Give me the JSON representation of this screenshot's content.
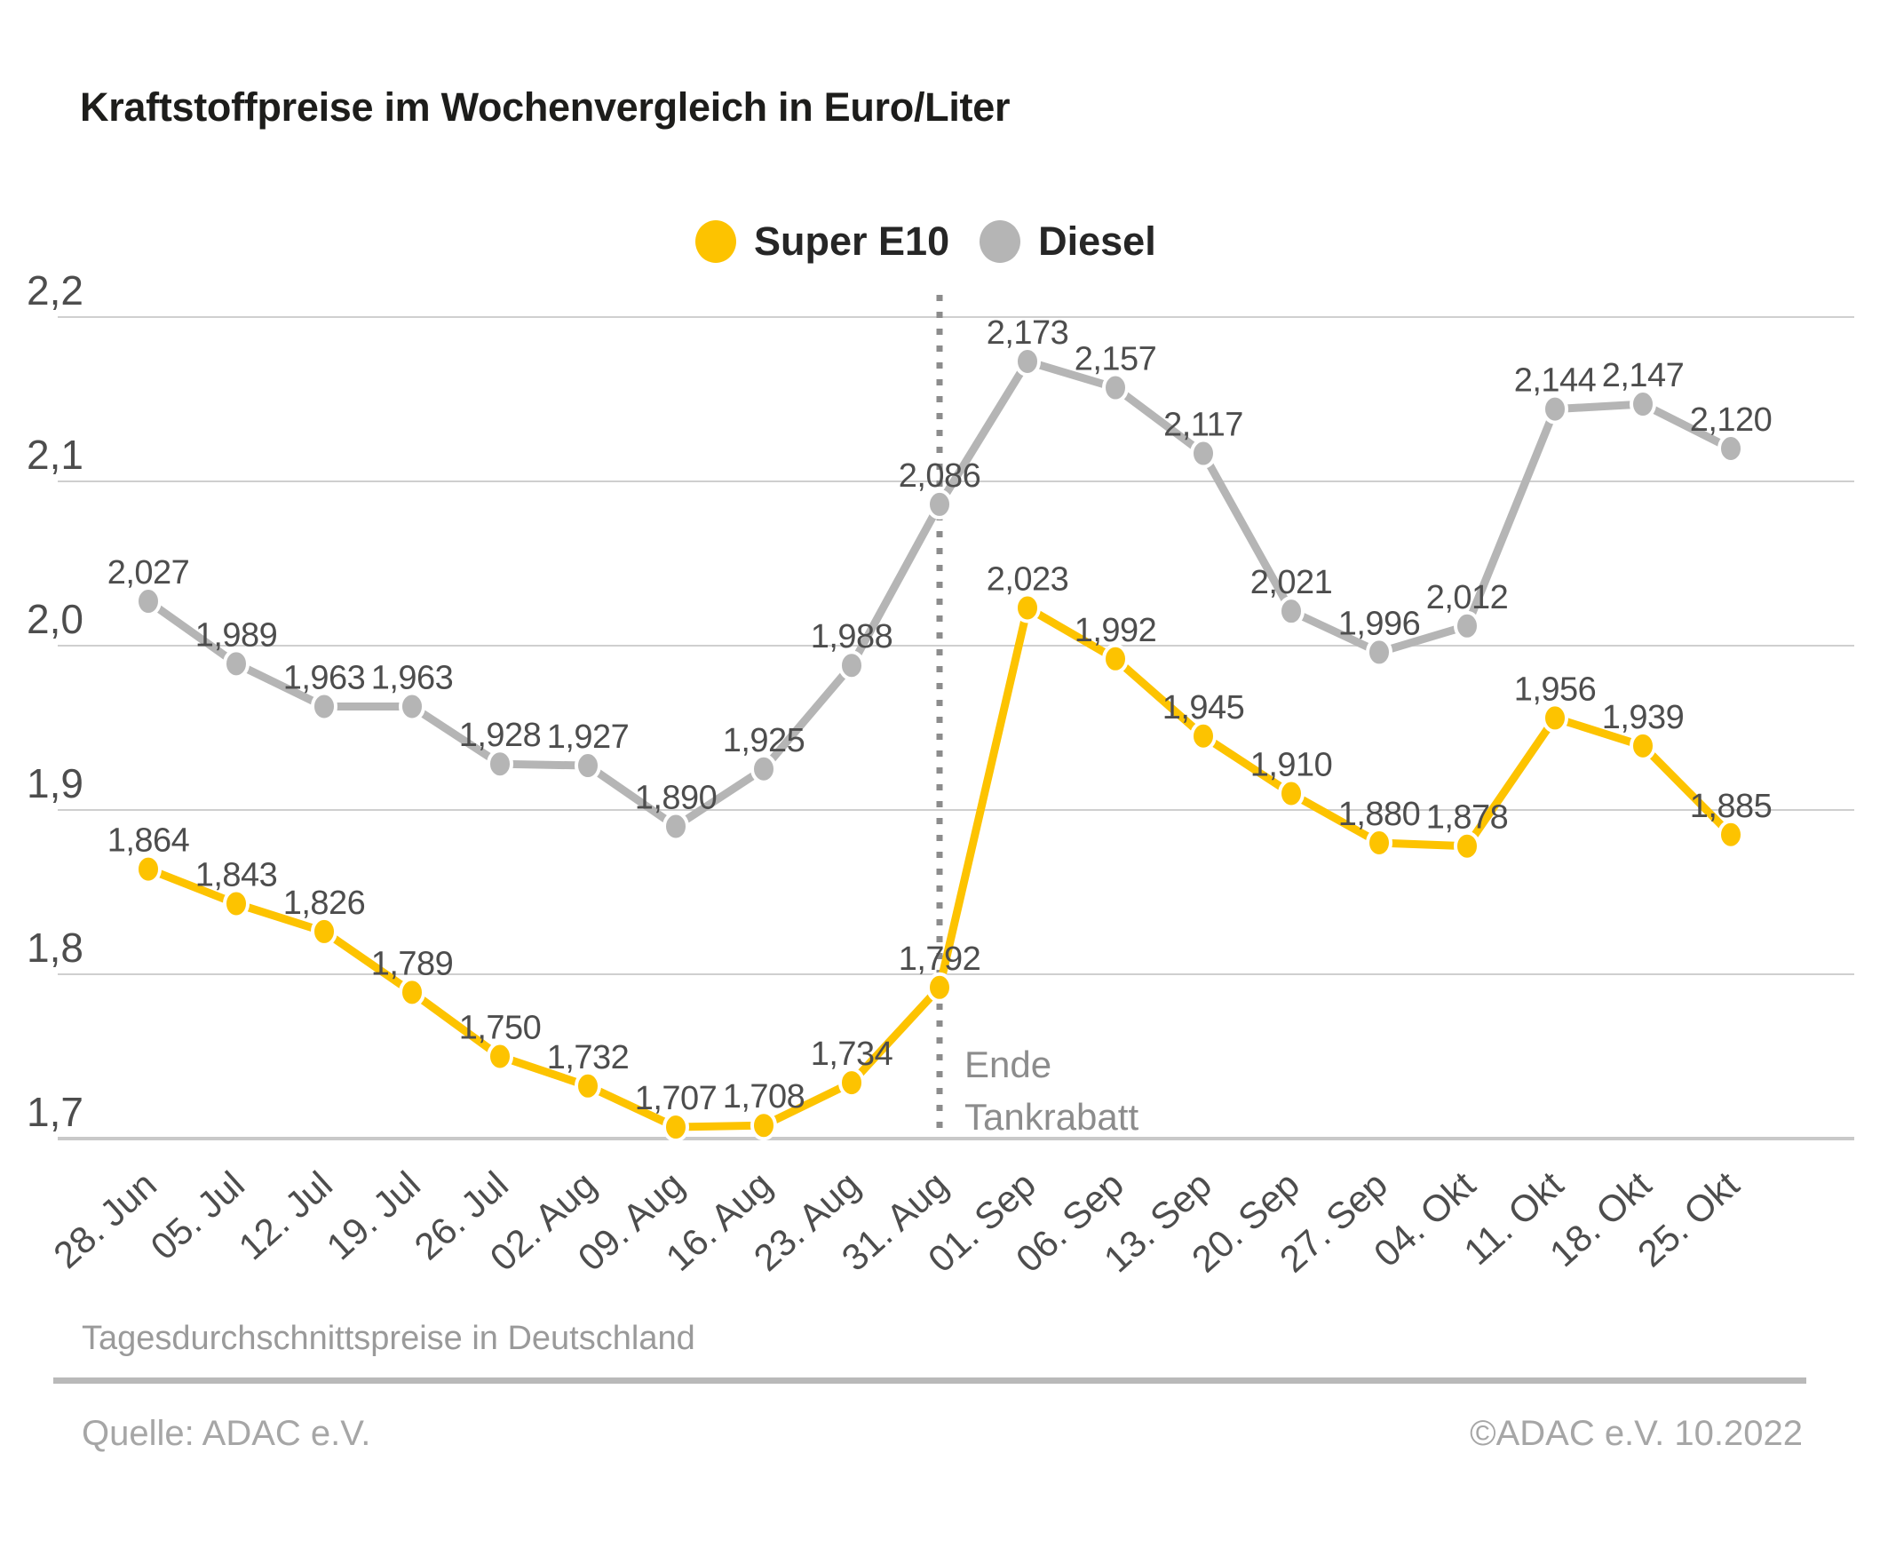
{
  "title": "Kraftstoffpreise im Wochenvergleich in Euro/Liter",
  "chart_data": {
    "type": "line",
    "title": "Kraftstoffpreise im Wochenvergleich in Euro/Liter",
    "categories": [
      "28. Jun",
      "05. Jul",
      "12. Jul",
      "19. Jul",
      "26. Jul",
      "02. Aug",
      "09. Aug",
      "16. Aug",
      "23. Aug",
      "31. Aug",
      "01. Sep",
      "06. Sep",
      "13. Sep",
      "20. Sep",
      "27. Sep",
      "04. Okt",
      "11. Okt",
      "18. Okt",
      "25. Okt"
    ],
    "series": [
      {
        "name": "Diesel",
        "color": "#b5b5b5",
        "values": [
          2.027,
          1.989,
          1.963,
          1.963,
          1.928,
          1.927,
          1.89,
          1.925,
          1.988,
          2.086,
          2.173,
          2.157,
          2.117,
          2.021,
          1.996,
          2.012,
          2.144,
          2.147,
          2.12
        ]
      },
      {
        "name": "Super E10",
        "color": "#fdc300",
        "values": [
          1.864,
          1.843,
          1.826,
          1.789,
          1.75,
          1.732,
          1.707,
          1.708,
          1.734,
          1.792,
          2.023,
          1.992,
          1.945,
          1.91,
          1.88,
          1.878,
          1.956,
          1.939,
          1.885
        ]
      }
    ],
    "ylim": [
      1.7,
      2.2
    ],
    "yticks": [
      2.2,
      2.1,
      2.0,
      1.9,
      1.8,
      1.7
    ],
    "decimal_separator": ",",
    "grid": "horizontal",
    "legend_position": "top",
    "annotation": {
      "line1": "Ende",
      "line2": "Tankrabatt",
      "category": "31. Aug",
      "category_index": 9
    }
  },
  "legend": {
    "super_e10_label": "Super E10",
    "diesel_label": "Diesel",
    "super_e10_color": "#fdc300",
    "diesel_color": "#b5b5b5"
  },
  "footer": {
    "note": "Tagesdurchschnittspreise in Deutschland",
    "source": "Quelle: ADAC e.V.",
    "copyright": "©ADAC e.V.  10.2022"
  }
}
